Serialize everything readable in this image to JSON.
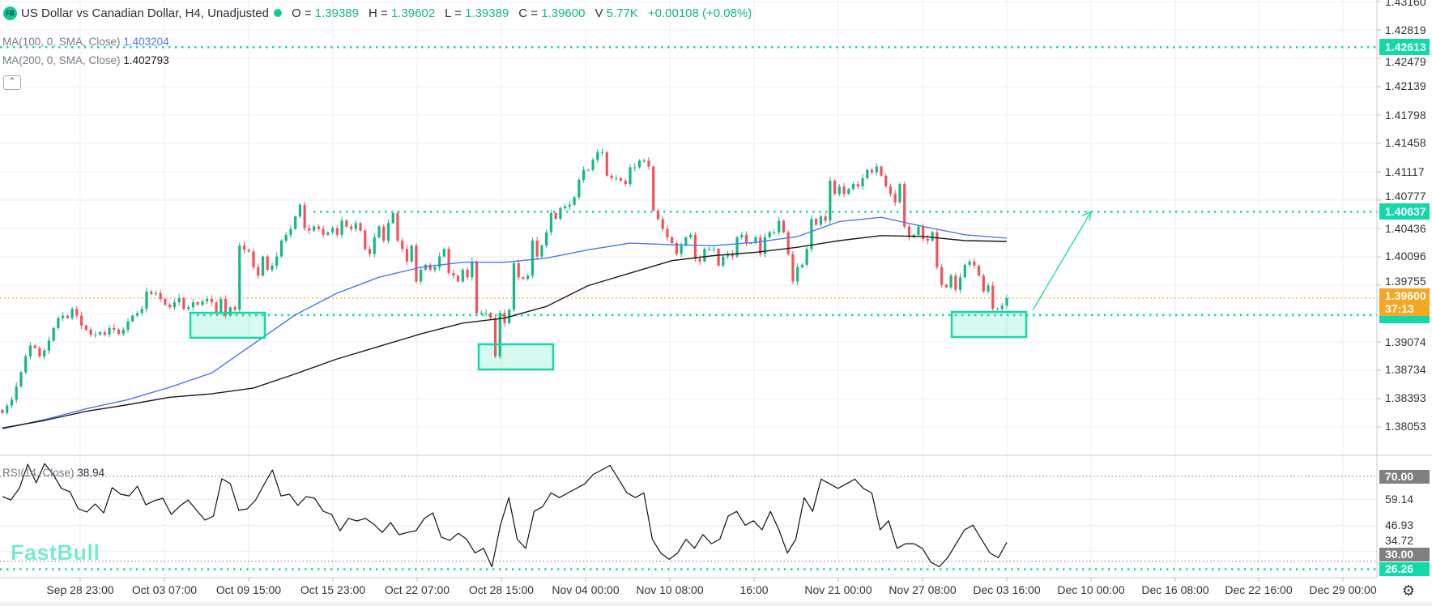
{
  "header": {
    "logo": "FB",
    "title": "US Dollar vs Canadian Dollar, H4, Unadjusted",
    "status_color": "#12c99b",
    "ohlc": [
      {
        "label": "O =",
        "value": "1.39389"
      },
      {
        "label": "H =",
        "value": "1.39602"
      },
      {
        "label": "L =",
        "value": "1.39389"
      },
      {
        "label": "C =",
        "value": "1.39600"
      }
    ],
    "volume_label": "V",
    "volume": "5.77K",
    "change": "+0.00108 (+0.08%)"
  },
  "indicators": {
    "ma100": {
      "label": "MA(100, 0, SMA, Close)",
      "value": "1.403204",
      "color": "#4a78f0"
    },
    "ma200": {
      "label": "MA(200, 0, SMA, Close)",
      "value": "1.402793",
      "color": "#1a1a1a"
    },
    "rsi": {
      "label": "RSI(14, Close)",
      "value": "38.94",
      "color": "#111111"
    },
    "collapse_icon": "chevron-up-icon"
  },
  "price_axis": {
    "ticks": [
      "1.43160",
      "1.42819",
      "1.42479",
      "1.42139",
      "1.41798",
      "1.41458",
      "1.41117",
      "1.40777",
      "1.40436",
      "1.40096",
      "1.39755",
      "1.39074",
      "1.38734",
      "1.38393",
      "1.38053"
    ],
    "badges": [
      {
        "value": "1.42613",
        "color": "#12d9a8"
      },
      {
        "value": "1.40637",
        "color": "#12d9a8"
      }
    ],
    "last_price": {
      "value": "1.39600",
      "countdown": "37:13",
      "color": "#f5a623"
    }
  },
  "rsi_axis": {
    "ticks": [
      "59.14",
      "46.93",
      "34.72"
    ],
    "badges": [
      {
        "value": "70.00",
        "color": "#808080"
      },
      {
        "value": "30.00",
        "color": "#808080"
      },
      {
        "value": "26.26",
        "color": "#12d9a8"
      }
    ]
  },
  "time_axis": [
    "Sep 28 23:00",
    "Oct 03 07:00",
    "Oct 09 15:00",
    "Oct 15 23:00",
    "Oct 22 07:00",
    "Oct 28 15:00",
    "Nov 04 00:00",
    "Nov 10 08:00",
    "16:00",
    "Nov 21 00:00",
    "Nov 27 08:00",
    "Dec 03 16:00",
    "Dec 10 00:00",
    "Dec 16 08:00",
    "Dec 22 16:00",
    "Dec 29 00:00"
  ],
  "watermark": "FastBull",
  "settings_icon": "gear-icon",
  "colors": {
    "up": "#12b886",
    "down": "#f2525a",
    "drawing": "#12d9a8",
    "last_price_line": "#f5a623"
  },
  "chart_data": {
    "type": "candlestick",
    "symbol": "USD/CAD",
    "timeframe": "H4",
    "ylim": [
      1.3771,
      1.4318
    ],
    "grid": true,
    "closes": [
      1.3822,
      1.3831,
      1.3838,
      1.3854,
      1.3871,
      1.389,
      1.3903,
      1.39,
      1.389,
      1.3897,
      1.3909,
      1.3924,
      1.3936,
      1.3939,
      1.3936,
      1.3947,
      1.3939,
      1.3927,
      1.3922,
      1.3916,
      1.3916,
      1.3919,
      1.3916,
      1.3924,
      1.3922,
      1.3917,
      1.3922,
      1.3932,
      1.3939,
      1.3942,
      1.3947,
      1.3968,
      1.3965,
      1.3966,
      1.3959,
      1.3952,
      1.3949,
      1.3955,
      1.396,
      1.3947,
      1.3949,
      1.3955,
      1.3952,
      1.3956,
      1.3959,
      1.3955,
      1.3942,
      1.3959,
      1.3939,
      1.3949,
      1.3946,
      1.4023,
      1.4018,
      1.4016,
      1.3997,
      1.3987,
      1.401,
      1.3994,
      1.3999,
      1.401,
      1.4029,
      1.4036,
      1.4043,
      1.4058,
      1.4072,
      1.4044,
      1.4041,
      1.4046,
      1.4043,
      1.4036,
      1.4039,
      1.4044,
      1.4036,
      1.4053,
      1.4046,
      1.4043,
      1.405,
      1.4041,
      1.4019,
      1.4013,
      1.4033,
      1.4046,
      1.4029,
      1.405,
      1.4062,
      1.4029,
      1.4019,
      1.4004,
      1.4023,
      1.398,
      1.3994,
      1.4,
      1.3994,
      1.3997,
      1.401,
      1.4019,
      1.399,
      1.3987,
      1.398,
      1.3994,
      1.3985,
      1.4004,
      1.3942,
      1.3942,
      1.3942,
      1.3936,
      1.389,
      1.3942,
      1.393,
      1.3946,
      1.4002,
      1.3985,
      1.3983,
      1.3987,
      1.4029,
      1.401,
      1.4023,
      1.4039,
      1.4062,
      1.4055,
      1.4068,
      1.407,
      1.4072,
      1.4081,
      1.4102,
      1.4114,
      1.4114,
      1.4126,
      1.4135,
      1.4135,
      1.4107,
      1.4104,
      1.4104,
      1.4101,
      1.4097,
      1.4117,
      1.4117,
      1.4125,
      1.4125,
      1.4118,
      1.4065,
      1.4055,
      1.4043,
      1.4033,
      1.4026,
      1.4013,
      1.4023,
      1.4033,
      1.4036,
      1.4007,
      1.4004,
      1.4019,
      1.4019,
      1.4019,
      1.3999,
      1.401,
      1.4013,
      1.401,
      1.4033,
      1.4036,
      1.4026,
      1.4026,
      1.4033,
      1.4013,
      1.4033,
      1.4039,
      1.4039,
      1.4053,
      1.4039,
      1.4013,
      1.398,
      1.3997,
      1.4,
      1.4019,
      1.4055,
      1.4048,
      1.4058,
      1.4053,
      1.4101,
      1.4085,
      1.4094,
      1.4085,
      1.4091,
      1.4097,
      1.4094,
      1.4104,
      1.4114,
      1.4111,
      1.4118,
      1.4107,
      1.4094,
      1.4085,
      1.4075,
      1.4097,
      1.4046,
      1.4033,
      1.4036,
      1.4046,
      1.4031,
      1.4029,
      1.4039,
      1.3997,
      1.3976,
      1.3973,
      1.3987,
      1.397,
      1.3985,
      1.4,
      1.4004,
      1.3999,
      1.3987,
      1.3968,
      1.3975,
      1.3947,
      1.3947,
      1.3951,
      1.396
    ],
    "ma100": [
      1.3803,
      1.3814,
      1.3827,
      1.3838,
      1.3853,
      1.387,
      1.3905,
      1.394,
      1.3966,
      1.3985,
      1.3997,
      1.4003,
      1.4003,
      1.4008,
      1.4018,
      1.4026,
      1.4024,
      1.4023,
      1.4027,
      1.4034,
      1.4052,
      1.4057,
      1.4046,
      1.4036,
      1.4032
    ],
    "ma200": [
      1.3804,
      1.3813,
      1.3824,
      1.3832,
      1.3841,
      1.3845,
      1.3852,
      1.3869,
      1.3887,
      1.3902,
      1.3917,
      1.393,
      1.3936,
      1.395,
      1.3975,
      1.399,
      1.4005,
      1.4011,
      1.4015,
      1.4021,
      1.4029,
      1.4035,
      1.4034,
      1.4029,
      1.4028
    ],
    "rsi": {
      "ylim": [
        22.3,
        79.9
      ],
      "levels": [
        70,
        30,
        26.26
      ],
      "values": [
        60.5,
        58.9,
        64.3,
        75.7,
        67,
        76,
        71,
        64.3,
        62.7,
        54.7,
        53.2,
        57,
        52.8,
        64.7,
        61.6,
        60.8,
        65.4,
        56.6,
        58.5,
        59.7,
        52.1,
        55.9,
        58.9,
        54,
        49.4,
        51.3,
        68.9,
        66.6,
        54,
        54.7,
        58.9,
        66.2,
        73,
        60.8,
        61.6,
        56.3,
        60.5,
        59.7,
        53.6,
        52.1,
        44.4,
        50.2,
        49,
        50.2,
        47.5,
        43.6,
        48.2,
        42.5,
        43.6,
        44.4,
        50.2,
        52.8,
        41.4,
        39.8,
        43.2,
        40.4,
        33.9,
        36.1,
        27.4,
        47,
        60,
        40.4,
        36.1,
        53.5,
        55.7,
        62.2,
        60,
        62.2,
        64.3,
        66.5,
        70.9,
        73,
        75.2,
        68.7,
        62.2,
        60,
        62.2,
        40.4,
        33.9,
        30.9,
        33.9,
        40.4,
        36.1,
        42.6,
        38.3,
        40.4,
        51.3,
        53.5,
        47,
        49.1,
        44.8,
        53.5,
        44.8,
        33.9,
        40.4,
        60,
        53.5,
        68.7,
        66.5,
        64.3,
        66.5,
        68.7,
        64.3,
        62.2,
        44.8,
        49.1,
        36.1,
        38.3,
        38.3,
        36.1,
        29.6,
        27.4,
        31.7,
        38.3,
        44.8,
        47,
        40.4,
        33.9,
        31.7,
        38.94
      ]
    },
    "horizontal_levels": [
      1.42613,
      1.40637,
      1.39395
    ],
    "last_price": 1.396,
    "zones": [
      {
        "top": 1.39424,
        "bottom": 1.39123
      },
      {
        "top": 1.39045,
        "bottom": 1.38743
      },
      {
        "top": 1.39434,
        "bottom": 1.39132
      }
    ],
    "arrow": {
      "from": 1.39453,
      "to": 1.40637
    }
  }
}
